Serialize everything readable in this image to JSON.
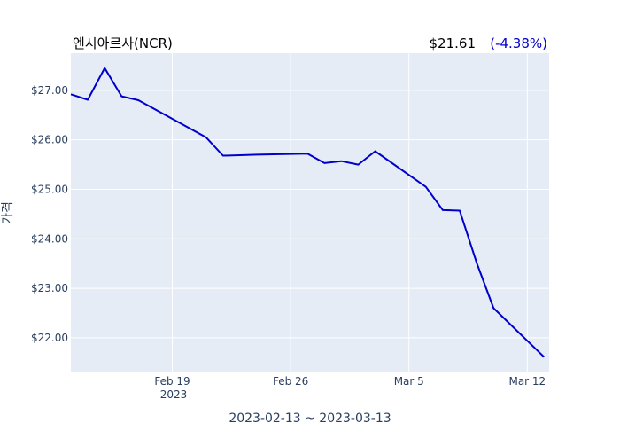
{
  "chart_data": {
    "type": "line",
    "title": "엔시아르사(NCR)",
    "price": "$21.61",
    "change_pct": "(-4.38%)",
    "ylabel": "가격",
    "xlabel": "2023-02-13 ~ 2023-03-13",
    "x_year_label": "2023",
    "line_color": "#0000cc",
    "plot_bg": "#e5ecf6",
    "grid": true,
    "xlim": [
      "2023-02-13",
      "2023-03-13"
    ],
    "ylim": [
      21.3,
      27.75
    ],
    "y_ticks": [
      {
        "value": 22,
        "label": "$22.00"
      },
      {
        "value": 23,
        "label": "$23.00"
      },
      {
        "value": 24,
        "label": "$24.00"
      },
      {
        "value": 25,
        "label": "$25.00"
      },
      {
        "value": 26,
        "label": "$26.00"
      },
      {
        "value": 27,
        "label": "$27.00"
      }
    ],
    "x_ticks": [
      {
        "date": "2023-02-19",
        "label": "Feb 19"
      },
      {
        "date": "2023-02-26",
        "label": "Feb 26"
      },
      {
        "date": "2023-03-05",
        "label": "Mar 5"
      },
      {
        "date": "2023-03-12",
        "label": "Mar 12"
      }
    ],
    "series": [
      {
        "x": [
          "2023-02-13",
          "2023-02-14",
          "2023-02-15",
          "2023-02-16",
          "2023-02-17",
          "2023-02-21",
          "2023-02-22",
          "2023-02-23",
          "2023-02-24",
          "2023-02-27",
          "2023-02-28",
          "2023-03-01",
          "2023-03-02",
          "2023-03-03",
          "2023-03-06",
          "2023-03-07",
          "2023-03-08",
          "2023-03-09",
          "2023-03-10",
          "2023-03-13"
        ],
        "values": [
          26.92,
          26.81,
          27.45,
          26.88,
          26.8,
          26.05,
          25.68,
          25.69,
          25.7,
          25.72,
          25.53,
          25.57,
          25.5,
          25.77,
          25.05,
          24.58,
          24.57,
          23.52,
          22.6,
          21.61
        ]
      }
    ]
  }
}
